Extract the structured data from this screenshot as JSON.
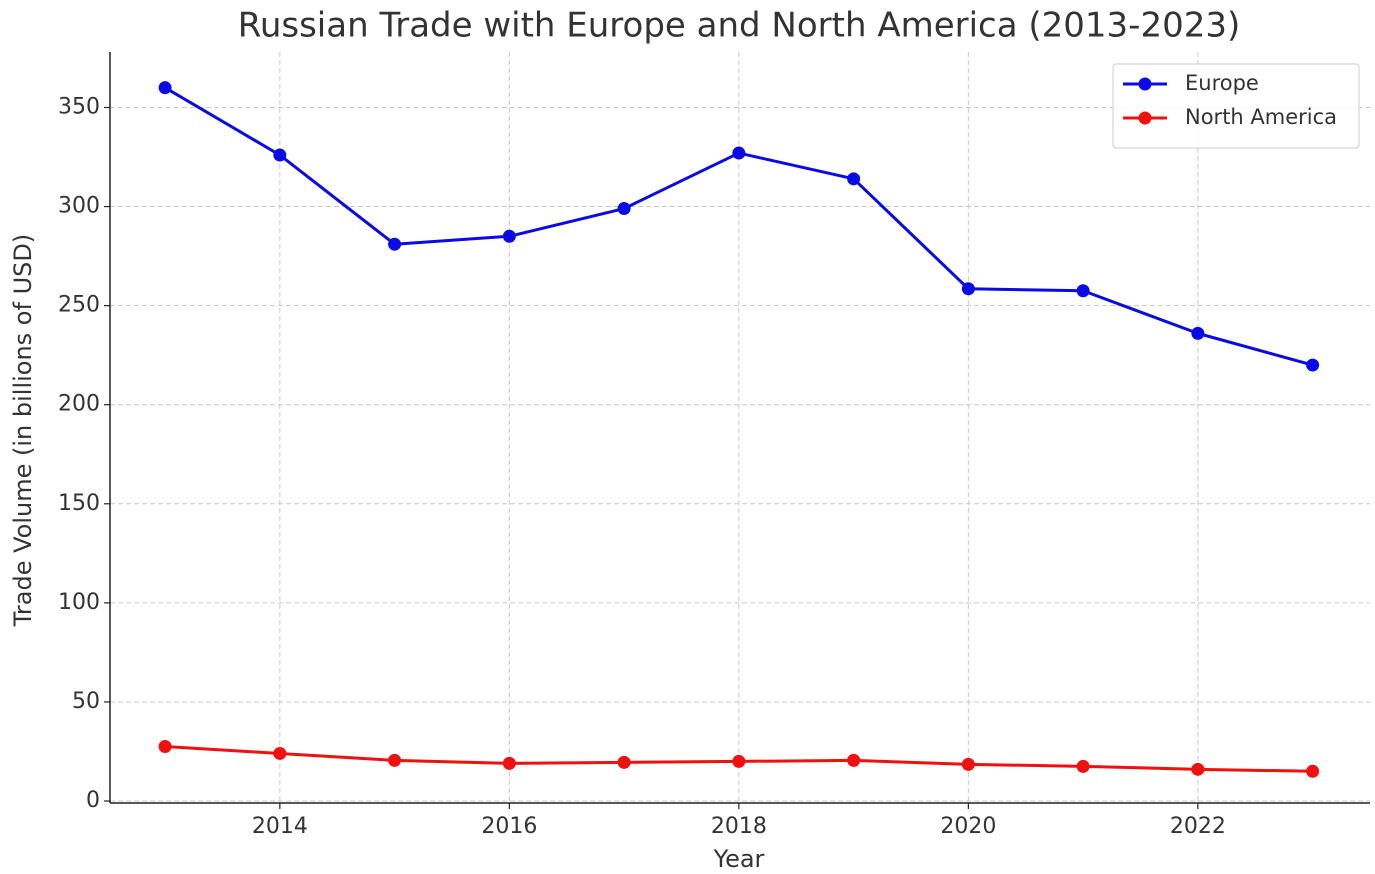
{
  "chart_data": {
    "type": "line",
    "title": "Russian Trade with Europe and North America (2013-2023)",
    "x_label": "Year",
    "y_label": "Trade Volume (in billions of USD)",
    "x": [
      2013,
      2014,
      2015,
      2016,
      2017,
      2018,
      2019,
      2020,
      2021,
      2022,
      2023
    ],
    "series": [
      {
        "name": "Europe",
        "color": "#0a0ae6",
        "values": [
          360,
          326,
          281,
          285,
          299,
          327,
          314,
          258.5,
          257.5,
          236,
          220
        ]
      },
      {
        "name": "North America",
        "color": "#f01010",
        "values": [
          27.5,
          24,
          20.5,
          19,
          19.5,
          20,
          20.5,
          18.5,
          17.5,
          16,
          15
        ]
      }
    ],
    "xlim": [
      2012.52,
      2023.5
    ],
    "ylim": [
      -1,
      378
    ],
    "xticks": [
      2014,
      2016,
      2018,
      2020,
      2022
    ],
    "yticks": [
      0,
      50,
      100,
      150,
      200,
      250,
      300,
      350
    ],
    "grid": true,
    "legend": "upper right"
  }
}
